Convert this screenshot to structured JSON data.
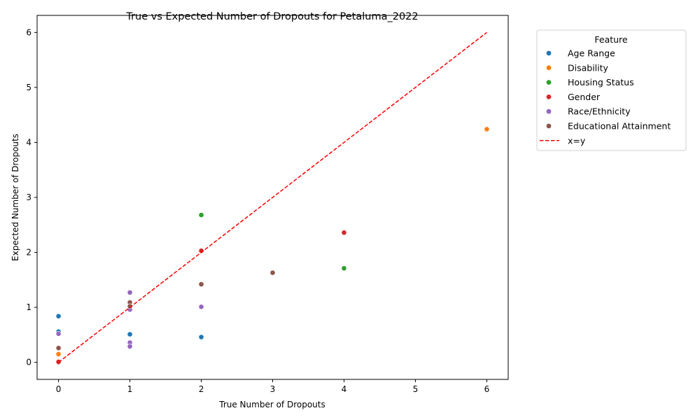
{
  "chart_data": {
    "type": "scatter",
    "title": "True vs Expected Number of Dropouts for Petaluma_2022",
    "xlabel": "True Number of Dropouts",
    "ylabel": "Expected Number of Dropouts",
    "xlim": [
      -0.3,
      6.3
    ],
    "ylim": [
      -0.31,
      6.31
    ],
    "xticks": [
      "0",
      "1",
      "2",
      "3",
      "4",
      "5",
      "6"
    ],
    "yticks": [
      "0",
      "1",
      "2",
      "3",
      "4",
      "5",
      "6"
    ],
    "grid": false,
    "legend": {
      "title": "Feature",
      "placement": "outside-top-right"
    },
    "series": [
      {
        "name": "Age Range",
        "color": "#1f77b4",
        "points": [
          [
            0,
            0.84
          ],
          [
            0,
            0.56
          ],
          [
            1,
            0.51
          ],
          [
            2,
            0.46
          ]
        ]
      },
      {
        "name": "Disability",
        "color": "#ff7f0e",
        "points": [
          [
            0,
            0.15
          ],
          [
            6,
            4.24
          ]
        ]
      },
      {
        "name": "Housing Status",
        "color": "#2ca02c",
        "points": [
          [
            2,
            2.68
          ],
          [
            4,
            1.71
          ]
        ]
      },
      {
        "name": "Gender",
        "color": "#d62728",
        "points": [
          [
            0,
            0.0
          ],
          [
            0,
            0.01
          ],
          [
            2,
            2.03
          ],
          [
            4,
            2.36
          ]
        ]
      },
      {
        "name": "Race/Ethnicity",
        "color": "#9467bd",
        "points": [
          [
            0,
            0.52
          ],
          [
            1,
            1.27
          ],
          [
            1,
            0.96
          ],
          [
            1,
            0.36
          ],
          [
            1,
            0.29
          ],
          [
            2,
            1.01
          ]
        ]
      },
      {
        "name": "Educational Attainment",
        "color": "#8c564b",
        "points": [
          [
            0,
            0.26
          ],
          [
            1,
            1.09
          ],
          [
            1,
            1.02
          ],
          [
            2,
            1.42
          ],
          [
            3,
            1.63
          ]
        ]
      }
    ],
    "reference_line": {
      "name": "x=y",
      "color": "#ff0000",
      "style": "dashed",
      "from": [
        0,
        0
      ],
      "to": [
        6,
        6
      ]
    }
  }
}
